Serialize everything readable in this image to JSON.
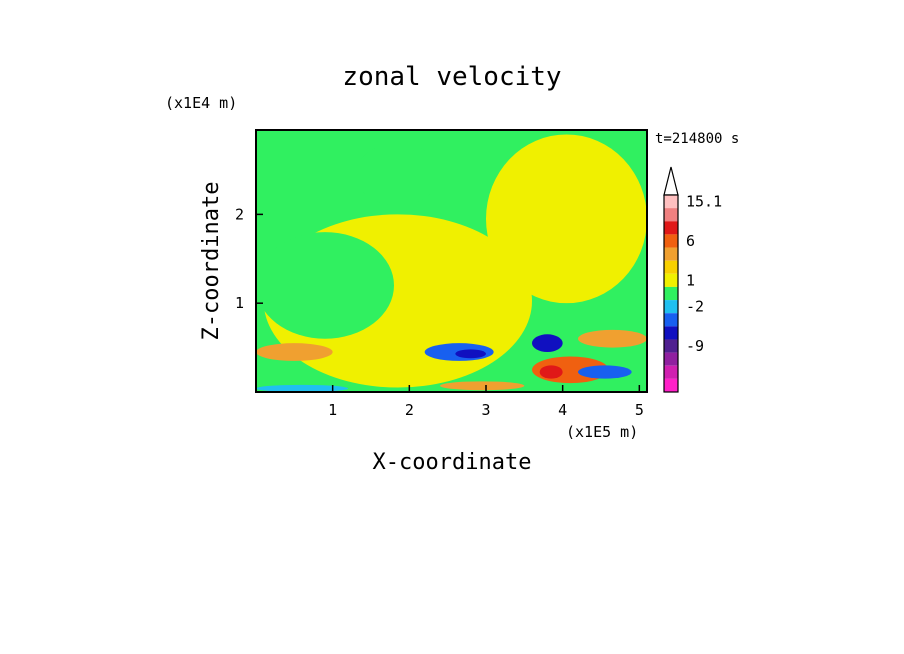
{
  "chart_data": {
    "type": "heatmap",
    "title": "zonal velocity",
    "xlabel": "X-coordinate",
    "ylabel": "Z-coordinate",
    "x_unit": "(x1E5 m)",
    "y_unit": "(x1E4 m)",
    "time_label": "t=214800 s",
    "xlim": [
      0,
      5.1
    ],
    "ylim": [
      0,
      2.95
    ],
    "x_ticks": [
      "1",
      "2",
      "3",
      "4",
      "5"
    ],
    "y_ticks": [
      "1",
      "2"
    ],
    "colorbar": {
      "labels": [
        "15.1",
        "6",
        "1",
        "-2",
        "-9"
      ],
      "colors": [
        "#ffc0c0",
        "#f08080",
        "#e01818",
        "#f06010",
        "#f0a030",
        "#f8d000",
        "#f0f000",
        "#30f060",
        "#20c0f0",
        "#1860f0",
        "#1010c0",
        "#502090",
        "#9020a0",
        "#d020b0",
        "#ff20c8"
      ]
    },
    "regions": [
      {
        "value": -1,
        "x": [
          0,
          5.1
        ],
        "z": [
          0,
          2.95
        ]
      },
      {
        "value": 0.5,
        "x": [
          0.1,
          3.6
        ],
        "z": [
          0.05,
          2.0
        ]
      },
      {
        "value": 0.5,
        "x": [
          3.0,
          5.1
        ],
        "z": [
          1.0,
          2.9
        ]
      },
      {
        "value": -1,
        "x": [
          0.0,
          1.8
        ],
        "z": [
          0.6,
          1.8
        ]
      },
      {
        "value": -1,
        "x": [
          1.3,
          2.4
        ],
        "z": [
          2.1,
          2.8
        ]
      },
      {
        "value": 2.5,
        "x": [
          0.0,
          1.0
        ],
        "z": [
          0.35,
          0.55
        ]
      },
      {
        "value": -4,
        "x": [
          2.2,
          3.1
        ],
        "z": [
          0.35,
          0.55
        ]
      },
      {
        "value": -6,
        "x": [
          2.6,
          3.0
        ],
        "z": [
          0.38,
          0.48
        ]
      },
      {
        "value": 4,
        "x": [
          3.6,
          4.6
        ],
        "z": [
          0.1,
          0.4
        ]
      },
      {
        "value": -6,
        "x": [
          3.6,
          4.0
        ],
        "z": [
          0.45,
          0.65
        ]
      },
      {
        "value": 8,
        "x": [
          3.7,
          4.0
        ],
        "z": [
          0.15,
          0.3
        ]
      },
      {
        "value": -5,
        "x": [
          4.2,
          4.9
        ],
        "z": [
          0.15,
          0.3
        ]
      },
      {
        "value": 2.5,
        "x": [
          4.2,
          5.1
        ],
        "z": [
          0.5,
          0.7
        ]
      },
      {
        "value": -3,
        "x": [
          0.0,
          1.2
        ],
        "z": [
          0.0,
          0.08
        ]
      },
      {
        "value": 2,
        "x": [
          2.4,
          3.5
        ],
        "z": [
          0.02,
          0.12
        ]
      }
    ]
  }
}
